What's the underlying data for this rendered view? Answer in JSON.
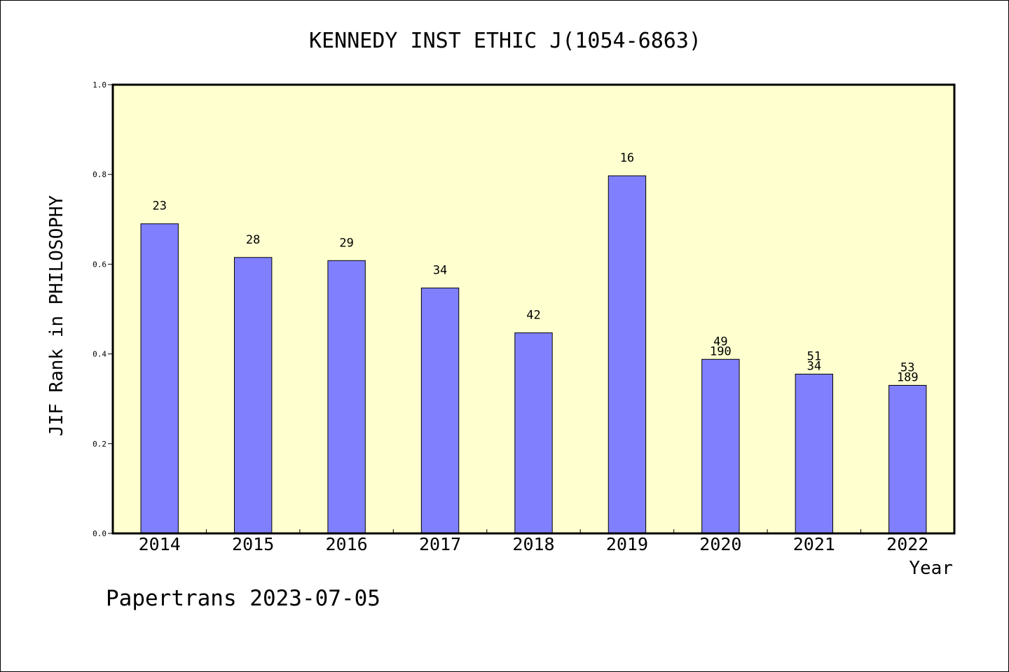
{
  "chart_data": {
    "type": "bar",
    "title": "KENNEDY INST ETHIC J(1054-6863)",
    "xlabel": "Year",
    "ylabel": "JIF Rank in PHILOSOPHY",
    "ylim": [
      0,
      1.0
    ],
    "yticks": [
      "0.0",
      "0.2",
      "0.4",
      "0.6",
      "0.8",
      "1.0"
    ],
    "categories": [
      "2014",
      "2015",
      "2016",
      "2017",
      "2018",
      "2019",
      "2020",
      "2021",
      "2022"
    ],
    "values": [
      0.69,
      0.615,
      0.608,
      0.547,
      0.447,
      0.797,
      0.388,
      0.355,
      0.33
    ],
    "rank_labels": [
      "23",
      "28",
      "29",
      "34",
      "42",
      "16",
      "49",
      "51",
      "53"
    ],
    "secondary_labels": [
      "",
      "",
      "",
      "",
      "",
      "",
      "190",
      "34",
      "189"
    ],
    "bar_color": "#8080ff",
    "plot_background": "#ffffd0",
    "grid": false,
    "footer": "Papertrans 2023-07-05"
  }
}
